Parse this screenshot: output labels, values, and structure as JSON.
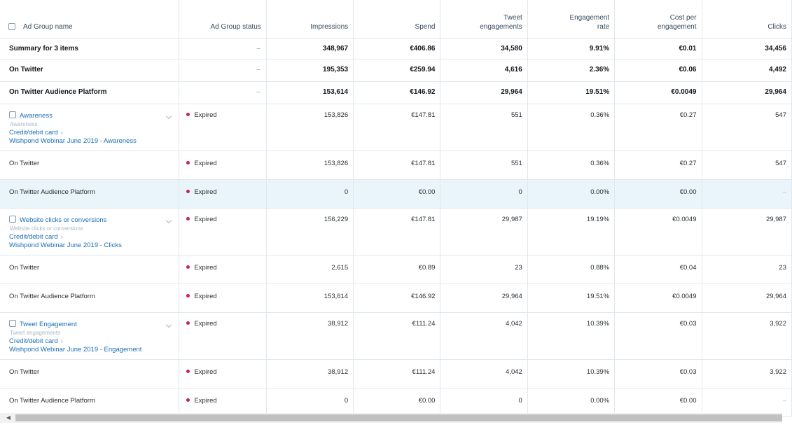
{
  "columns": {
    "name": "Ad Group name",
    "status": "Ad Group status",
    "impressions": "Impressions",
    "spend": "Spend",
    "tweet_engagements": "Tweet\nengagements",
    "engagement_rate": "Engagement\nrate",
    "cost_per_engagement": "Cost per\nengagement",
    "clicks": "Clicks"
  },
  "summary_rows": [
    {
      "name": "Summary for 3 items",
      "status": "–",
      "impressions": "348,967",
      "spend": "€406.86",
      "tweet_engagements": "34,580",
      "engagement_rate": "9.91%",
      "cost_per_engagement": "€0.01",
      "clicks": "34,456"
    },
    {
      "name": "On Twitter",
      "status": "–",
      "impressions": "195,353",
      "spend": "€259.94",
      "tweet_engagements": "4,616",
      "engagement_rate": "2.36%",
      "cost_per_engagement": "€0.06",
      "clicks": "4,492"
    },
    {
      "name": "On Twitter Audience Platform",
      "status": "–",
      "impressions": "153,614",
      "spend": "€146.92",
      "tweet_engagements": "29,964",
      "engagement_rate": "19.51%",
      "cost_per_engagement": "€0.0049",
      "clicks": "29,964"
    }
  ],
  "groups": [
    {
      "title": "Awareness",
      "objective": "Awareness",
      "payment": "Credit/debit card",
      "campaign": "Wishpond Webinar June 2019 - Awareness",
      "status": "Expired",
      "impressions": "153,826",
      "spend": "€147.81",
      "tweet_engagements": "551",
      "engagement_rate": "0.36%",
      "cost_per_engagement": "€0.27",
      "clicks": "547",
      "subrows": [
        {
          "name": "On Twitter",
          "status": "Expired",
          "impressions": "153,826",
          "spend": "€147.81",
          "tweet_engagements": "551",
          "engagement_rate": "0.36%",
          "cost_per_engagement": "€0.27",
          "clicks": "547"
        },
        {
          "name": "On Twitter Audience Platform",
          "status": "Expired",
          "impressions": "0",
          "spend": "€0.00",
          "tweet_engagements": "0",
          "engagement_rate": "0.00%",
          "cost_per_engagement": "€0.00",
          "clicks": "–"
        }
      ]
    },
    {
      "title": "Website clicks or conversions",
      "objective": "Website clicks or conversions",
      "payment": "Credit/debit card",
      "campaign": "Wishpond Webinar June 2019 - Clicks",
      "status": "Expired",
      "impressions": "156,229",
      "spend": "€147.81",
      "tweet_engagements": "29,987",
      "engagement_rate": "19.19%",
      "cost_per_engagement": "€0.0049",
      "clicks": "29,987",
      "subrows": [
        {
          "name": "On Twitter",
          "status": "Expired",
          "impressions": "2,615",
          "spend": "€0.89",
          "tweet_engagements": "23",
          "engagement_rate": "0.88%",
          "cost_per_engagement": "€0.04",
          "clicks": "23"
        },
        {
          "name": "On Twitter Audience Platform",
          "status": "Expired",
          "impressions": "153,614",
          "spend": "€146.92",
          "tweet_engagements": "29,964",
          "engagement_rate": "19.51%",
          "cost_per_engagement": "€0.0049",
          "clicks": "29,964"
        }
      ]
    },
    {
      "title": "Tweet Engagement",
      "objective": "Tweet engagements",
      "payment": "Credit/debit card",
      "campaign": "Wishpond Webinar June 2019 - Engagement",
      "status": "Expired",
      "impressions": "38,912",
      "spend": "€111.24",
      "tweet_engagements": "4,042",
      "engagement_rate": "10.39%",
      "cost_per_engagement": "€0.03",
      "clicks": "3,922",
      "subrows": [
        {
          "name": "On Twitter",
          "status": "Expired",
          "impressions": "38,912",
          "spend": "€111.24",
          "tweet_engagements": "4,042",
          "engagement_rate": "10.39%",
          "cost_per_engagement": "€0.03",
          "clicks": "3,922"
        },
        {
          "name": "On Twitter Audience Platform",
          "status": "Expired",
          "impressions": "0",
          "spend": "€0.00",
          "tweet_engagements": "0",
          "engagement_rate": "0.00%",
          "cost_per_engagement": "€0.00",
          "clicks": "–"
        }
      ]
    }
  ],
  "colors": {
    "link": "#1b6fb4",
    "expired_dot": "#c8224f",
    "highlight_row": "#eaf4fb"
  },
  "scrollbar": {
    "left_arrow_icon": "chevron-left-icon"
  }
}
